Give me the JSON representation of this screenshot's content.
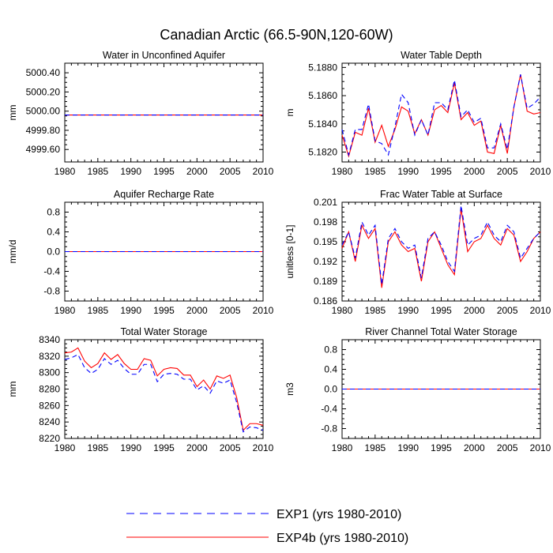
{
  "title": "Canadian Arctic (66.5-90N,120-60W)",
  "colors": {
    "exp1": "#0000ff",
    "exp4b": "#ff0000",
    "axis": "#000000"
  },
  "legend": [
    {
      "label": "EXP1 (yrs 1980-2010)",
      "color": "#0000ff",
      "style": "dashed"
    },
    {
      "label": "EXP4b (yrs 1980-2010)",
      "color": "#ff0000",
      "style": "solid"
    }
  ],
  "chart_data": [
    {
      "type": "line",
      "title": "Water in Unconfined Aquifer",
      "xlabel": "",
      "ylabel": "mm",
      "xlim": [
        1980,
        2010
      ],
      "ylim": [
        4999.47,
        5000.5
      ],
      "xticks": [
        1980,
        1985,
        1990,
        1995,
        2000,
        2005,
        2010
      ],
      "yticks": [
        4999.6,
        4999.8,
        5000.0,
        5000.2,
        5000.4
      ],
      "ytick_labels": [
        "4999.60",
        "4999.80",
        "5000.00",
        "5000.20",
        "5000.40"
      ],
      "x": [
        1980,
        1981,
        1982,
        1983,
        1984,
        1985,
        1986,
        1987,
        1988,
        1989,
        1990,
        1991,
        1992,
        1993,
        1994,
        1995,
        1996,
        1997,
        1998,
        1999,
        2000,
        2001,
        2002,
        2003,
        2004,
        2005,
        2006,
        2007,
        2008,
        2009,
        2010
      ],
      "series": [
        {
          "name": "EXP1",
          "values": [
            4999.96,
            4999.96,
            4999.96,
            4999.96,
            4999.96,
            4999.96,
            4999.96,
            4999.96,
            4999.96,
            4999.96,
            4999.96,
            4999.96,
            4999.96,
            4999.96,
            4999.96,
            4999.96,
            4999.96,
            4999.96,
            4999.96,
            4999.96,
            4999.96,
            4999.96,
            4999.96,
            4999.96,
            4999.96,
            4999.96,
            4999.96,
            4999.96,
            4999.96,
            4999.96,
            4999.96
          ]
        },
        {
          "name": "EXP4b",
          "values": [
            4999.96,
            4999.96,
            4999.96,
            4999.96,
            4999.96,
            4999.96,
            4999.96,
            4999.96,
            4999.96,
            4999.96,
            4999.96,
            4999.96,
            4999.96,
            4999.96,
            4999.96,
            4999.96,
            4999.96,
            4999.96,
            4999.96,
            4999.96,
            4999.96,
            4999.96,
            4999.96,
            4999.96,
            4999.96,
            4999.96,
            4999.96,
            4999.96,
            4999.96,
            4999.96,
            4999.96
          ]
        }
      ]
    },
    {
      "type": "line",
      "title": "Water Table Depth",
      "xlabel": "",
      "ylabel": "m",
      "xlim": [
        1980,
        2010
      ],
      "ylim": [
        5.1813,
        5.1883
      ],
      "xticks": [
        1980,
        1985,
        1990,
        1995,
        2000,
        2005,
        2010
      ],
      "yticks": [
        5.182,
        5.184,
        5.186,
        5.188
      ],
      "ytick_labels": [
        "5.1820",
        "5.1840",
        "5.1860",
        "5.1880"
      ],
      "x": [
        1980,
        1981,
        1982,
        1983,
        1984,
        1985,
        1986,
        1987,
        1988,
        1989,
        1990,
        1991,
        1992,
        1993,
        1994,
        1995,
        1996,
        1997,
        1998,
        1999,
        2000,
        2001,
        2002,
        2003,
        2004,
        2005,
        2006,
        2007,
        2008,
        2009,
        2010
      ],
      "series": [
        {
          "name": "EXP1",
          "values": [
            5.1836,
            5.1818,
            5.1836,
            5.1836,
            5.1854,
            5.1828,
            5.1826,
            5.1818,
            5.1838,
            5.1861,
            5.1855,
            5.1832,
            5.1843,
            5.1832,
            5.1855,
            5.1855,
            5.185,
            5.1871,
            5.1845,
            5.185,
            5.1841,
            5.1844,
            5.1823,
            5.1823,
            5.184,
            5.1822,
            5.1852,
            5.1875,
            5.1851,
            5.1854,
            5.1859
          ]
        },
        {
          "name": "EXP4b",
          "values": [
            5.1832,
            5.1817,
            5.1834,
            5.1832,
            5.1851,
            5.1827,
            5.1839,
            5.1824,
            5.1836,
            5.1852,
            5.1849,
            5.1833,
            5.1843,
            5.1832,
            5.185,
            5.1853,
            5.1848,
            5.1869,
            5.1843,
            5.1848,
            5.1839,
            5.1842,
            5.182,
            5.1819,
            5.1839,
            5.1819,
            5.1852,
            5.1875,
            5.1849,
            5.1847,
            5.1848
          ]
        }
      ]
    },
    {
      "type": "line",
      "title": "Aquifer Recharge Rate",
      "xlabel": "",
      "ylabel": "mm/d",
      "xlim": [
        1980,
        2010
      ],
      "ylim": [
        -1.0,
        1.0
      ],
      "xticks": [
        1980,
        1985,
        1990,
        1995,
        2000,
        2005,
        2010
      ],
      "yticks": [
        -0.8,
        -0.4,
        0.0,
        0.4,
        0.8
      ],
      "ytick_labels": [
        "-0.8",
        "-0.4",
        "0.0",
        "0.4",
        "0.8"
      ],
      "x": [
        1980,
        1981,
        1982,
        1983,
        1984,
        1985,
        1986,
        1987,
        1988,
        1989,
        1990,
        1991,
        1992,
        1993,
        1994,
        1995,
        1996,
        1997,
        1998,
        1999,
        2000,
        2001,
        2002,
        2003,
        2004,
        2005,
        2006,
        2007,
        2008,
        2009,
        2010
      ],
      "series": [
        {
          "name": "EXP1",
          "values": [
            0,
            0,
            0,
            0,
            0,
            0,
            0,
            0,
            0,
            0,
            0,
            0,
            0,
            0,
            0,
            0,
            0,
            0,
            0,
            0,
            0,
            0,
            0,
            0,
            0,
            0,
            0,
            0,
            0,
            0,
            0
          ]
        },
        {
          "name": "EXP4b",
          "values": [
            0,
            0,
            0,
            0,
            0,
            0,
            0,
            0,
            0,
            0,
            0,
            0,
            0,
            0,
            0,
            0,
            0,
            0,
            0,
            0,
            0,
            0,
            0,
            0,
            0,
            0,
            0,
            0,
            0,
            0,
            0
          ]
        }
      ]
    },
    {
      "type": "line",
      "title": "Frac Water Table at Surface",
      "xlabel": "",
      "ylabel": "unitless [0-1]",
      "xlim": [
        1980,
        2010
      ],
      "ylim": [
        0.186,
        0.201
      ],
      "xticks": [
        1980,
        1985,
        1990,
        1995,
        2000,
        2005,
        2010
      ],
      "yticks": [
        0.186,
        0.189,
        0.192,
        0.195,
        0.198,
        0.201
      ],
      "ytick_labels": [
        "0.186",
        "0.189",
        "0.192",
        "0.195",
        "0.198",
        "0.201"
      ],
      "x": [
        1980,
        1981,
        1982,
        1983,
        1984,
        1985,
        1986,
        1987,
        1988,
        1989,
        1990,
        1991,
        1992,
        1993,
        1994,
        1995,
        1996,
        1997,
        1998,
        1999,
        2000,
        2001,
        2002,
        2003,
        2004,
        2005,
        2006,
        2007,
        2008,
        2009,
        2010
      ],
      "series": [
        {
          "name": "EXP1",
          "values": [
            0.1945,
            0.1965,
            0.1925,
            0.198,
            0.196,
            0.1975,
            0.1885,
            0.1955,
            0.197,
            0.195,
            0.194,
            0.1945,
            0.1895,
            0.1955,
            0.1965,
            0.1945,
            0.192,
            0.1905,
            0.2005,
            0.1945,
            0.1955,
            0.196,
            0.198,
            0.196,
            0.195,
            0.1975,
            0.1965,
            0.1925,
            0.194,
            0.1955,
            0.1965
          ]
        },
        {
          "name": "EXP4b",
          "values": [
            0.194,
            0.1965,
            0.192,
            0.1975,
            0.1955,
            0.197,
            0.188,
            0.195,
            0.1965,
            0.1945,
            0.1935,
            0.194,
            0.189,
            0.195,
            0.1965,
            0.194,
            0.1915,
            0.19,
            0.2,
            0.1935,
            0.195,
            0.1955,
            0.1975,
            0.1955,
            0.1945,
            0.197,
            0.196,
            0.192,
            0.1935,
            0.1955,
            0.1965
          ]
        }
      ]
    },
    {
      "type": "line",
      "title": "Total Water Storage",
      "xlabel": "",
      "ylabel": "mm",
      "xlim": [
        1980,
        2010
      ],
      "ylim": [
        8220,
        8340
      ],
      "xticks": [
        1980,
        1985,
        1990,
        1995,
        2000,
        2005,
        2010
      ],
      "yticks": [
        8220,
        8240,
        8260,
        8280,
        8300,
        8320,
        8340
      ],
      "ytick_labels": [
        "8220",
        "8240",
        "8260",
        "8280",
        "8300",
        "8320",
        "8340"
      ],
      "x": [
        1980,
        1981,
        1982,
        1983,
        1984,
        1985,
        1986,
        1987,
        1988,
        1989,
        1990,
        1991,
        1992,
        1993,
        1994,
        1995,
        1996,
        1997,
        1998,
        1999,
        2000,
        2001,
        2002,
        2003,
        2004,
        2005,
        2006,
        2007,
        2008,
        2009,
        2010
      ],
      "series": [
        {
          "name": "EXP1",
          "values": [
            8316,
            8318,
            8322,
            8306,
            8299,
            8304,
            8317,
            8310,
            8315,
            8305,
            8298,
            8298,
            8310,
            8310,
            8289,
            8298,
            8299,
            8298,
            8292,
            8292,
            8279,
            8284,
            8275,
            8290,
            8287,
            8291,
            8264,
            8228,
            8234,
            8233,
            8230
          ]
        },
        {
          "name": "EXP4b",
          "values": [
            8324,
            8325,
            8330,
            8314,
            8306,
            8311,
            8324,
            8316,
            8322,
            8311,
            8304,
            8304,
            8317,
            8315,
            8296,
            8304,
            8306,
            8305,
            8297,
            8297,
            8283,
            8291,
            8280,
            8296,
            8293,
            8297,
            8270,
            8230,
            8238,
            8238,
            8236
          ]
        }
      ]
    },
    {
      "type": "line",
      "title": "River Channel Total Water Storage",
      "xlabel": "",
      "ylabel": "m3",
      "xlim": [
        1980,
        2010
      ],
      "ylim": [
        -1.0,
        1.0
      ],
      "xticks": [
        1980,
        1985,
        1990,
        1995,
        2000,
        2005,
        2010
      ],
      "yticks": [
        -0.8,
        -0.4,
        0.0,
        0.4,
        0.8
      ],
      "ytick_labels": [
        "-0.8",
        "-0.4",
        "0.0",
        "0.4",
        "0.8"
      ],
      "x": [
        1980,
        1981,
        1982,
        1983,
        1984,
        1985,
        1986,
        1987,
        1988,
        1989,
        1990,
        1991,
        1992,
        1993,
        1994,
        1995,
        1996,
        1997,
        1998,
        1999,
        2000,
        2001,
        2002,
        2003,
        2004,
        2005,
        2006,
        2007,
        2008,
        2009,
        2010
      ],
      "series": [
        {
          "name": "EXP1",
          "values": [
            0,
            0,
            0,
            0,
            0,
            0,
            0,
            0,
            0,
            0,
            0,
            0,
            0,
            0,
            0,
            0,
            0,
            0,
            0,
            0,
            0,
            0,
            0,
            0,
            0,
            0,
            0,
            0,
            0,
            0,
            0
          ]
        },
        {
          "name": "EXP4b",
          "values": [
            0,
            0,
            0,
            0,
            0,
            0,
            0,
            0,
            0,
            0,
            0,
            0,
            0,
            0,
            0,
            0,
            0,
            0,
            0,
            0,
            0,
            0,
            0,
            0,
            0,
            0,
            0,
            0,
            0,
            0,
            0
          ]
        }
      ]
    }
  ]
}
